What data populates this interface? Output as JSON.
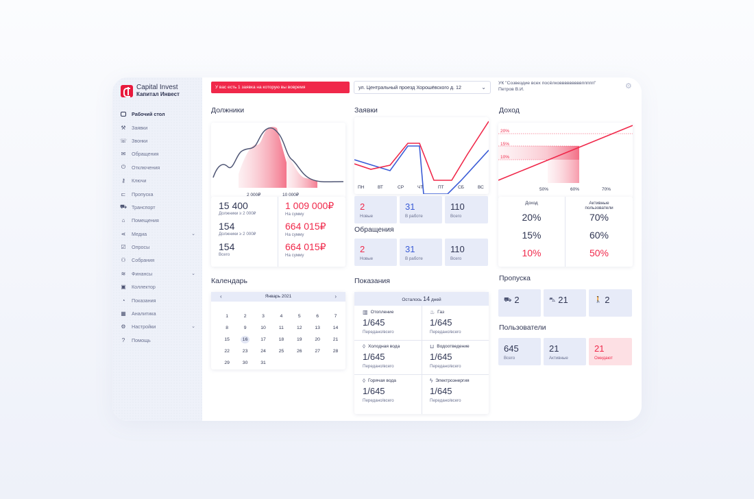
{
  "app": {
    "name": "Capital Invest",
    "name_ru": "Капитал Инвест",
    "accent_color": "#f0284a",
    "blue_color": "#3a5bd6"
  },
  "sidebar": {
    "items": [
      {
        "label": "Рабочий стол",
        "icon": "monitor-icon",
        "active": true
      },
      {
        "label": "Заявки",
        "icon": "wrench-icon"
      },
      {
        "label": "Звонки",
        "icon": "phone-icon"
      },
      {
        "label": "Обращения",
        "icon": "mail-icon"
      },
      {
        "label": "Отключения",
        "icon": "power-icon"
      },
      {
        "label": "Ключи",
        "icon": "key-icon"
      },
      {
        "label": "Пропуска",
        "icon": "pass-icon"
      },
      {
        "label": "Транспорт",
        "icon": "car-icon"
      },
      {
        "label": "Помещения",
        "icon": "home-icon"
      },
      {
        "label": "Медиа",
        "icon": "share-icon",
        "expandable": true
      },
      {
        "label": "Опросы",
        "icon": "checkbox-icon"
      },
      {
        "label": "Собрания",
        "icon": "people-icon"
      },
      {
        "label": "Финансы",
        "icon": "database-icon",
        "expandable": true
      },
      {
        "label": "Коллектор",
        "icon": "briefcase-icon"
      },
      {
        "label": "Показания",
        "icon": "gauge-icon"
      },
      {
        "label": "Аналитика",
        "icon": "chart-icon"
      },
      {
        "label": "Настройки",
        "icon": "gear-icon",
        "expandable": true
      },
      {
        "label": "Помощь",
        "icon": "help-icon"
      }
    ]
  },
  "header": {
    "alert": "У вас есть 1 заявка на которую вы вовремя",
    "address": "ул. Центральный проезд Хорошёвского д. 12",
    "org_name": "УК \"Созвездие всех посёлковввввввввппппп\"",
    "user": "Петров В.И."
  },
  "debtors": {
    "title": "Должники",
    "axis_labels": [
      "2 000₽",
      "10 000₽"
    ],
    "rows": [
      {
        "left_value": "15 400",
        "left_label": "Должники ≥ 2 000₽",
        "right_value": "1 009 000₽",
        "right_label": "На сумму"
      },
      {
        "left_value": "154",
        "left_label": "Должники ≥ 2 000₽",
        "right_value": "664 015₽",
        "right_label": "На сумму"
      },
      {
        "left_value": "154",
        "left_label": "Всего",
        "right_value": "664 015₽",
        "right_label": "На сумму"
      }
    ]
  },
  "requests": {
    "title": "Заявки",
    "days": [
      "ПН",
      "ВТ",
      "СР",
      "ЧТ",
      "ПТ",
      "СБ",
      "ВС"
    ],
    "tiles": [
      {
        "value": "2",
        "label": "Новые",
        "red": true
      },
      {
        "value": "31",
        "label": "В работе"
      },
      {
        "value": "110",
        "label": "Всего"
      }
    ]
  },
  "appeals": {
    "title": "Обращения",
    "tiles": [
      {
        "value": "2",
        "label": "Новые",
        "red": true
      },
      {
        "value": "31",
        "label": "В работе"
      },
      {
        "value": "110",
        "label": "Всего"
      }
    ]
  },
  "income": {
    "title": "Доход",
    "y_labels": [
      "20%",
      "15%",
      "10%"
    ],
    "x_labels": [
      "50%",
      "60%",
      "70%"
    ],
    "col_left_title": "Доход",
    "col_right_title": "Активные пользователи",
    "rows": [
      {
        "left": "20%",
        "right": "70%"
      },
      {
        "left": "15%",
        "right": "60%"
      },
      {
        "left": "10%",
        "right": "50%",
        "red": true
      }
    ]
  },
  "calendar": {
    "title": "Календарь",
    "month": "Январь 2021",
    "selected_day": "16",
    "days": [
      "1",
      "2",
      "3",
      "4",
      "5",
      "6",
      "7",
      "8",
      "9",
      "10",
      "11",
      "12",
      "13",
      "14",
      "15",
      "16",
      "17",
      "18",
      "19",
      "20",
      "21",
      "22",
      "23",
      "24",
      "25",
      "26",
      "27",
      "28",
      "29",
      "30",
      "31"
    ]
  },
  "meters": {
    "title": "Показания",
    "remaining_prefix": "Осталось",
    "remaining_value": "14",
    "remaining_suffix": "дней",
    "cells": [
      {
        "label": "Отопление",
        "icon": "radiator-icon",
        "value": "1/645",
        "sub": "Передано/всего"
      },
      {
        "label": "Газ",
        "icon": "flame-icon",
        "value": "1/645",
        "sub": "Передано/всего"
      },
      {
        "label": "Холодная вода",
        "icon": "drop-icon",
        "value": "1/645",
        "sub": "Передано/всего"
      },
      {
        "label": "Водоотведение",
        "icon": "pipe-icon",
        "value": "1/645",
        "sub": "Передано/всего"
      },
      {
        "label": "Горячая вода",
        "icon": "hot-drop-icon",
        "value": "1/645",
        "sub": "Передано/всего"
      },
      {
        "label": "Электроэнергия",
        "icon": "bolt-icon",
        "value": "1/645",
        "sub": "Передано/всего"
      }
    ]
  },
  "passes": {
    "title": "Пропуска",
    "tiles": [
      {
        "value": "2",
        "icon": "truck-icon"
      },
      {
        "value": "21",
        "icon": "car-icon"
      },
      {
        "value": "2",
        "icon": "pedestrian-icon"
      }
    ]
  },
  "users": {
    "title": "Пользователи",
    "tiles": [
      {
        "value": "645",
        "label": "Всего"
      },
      {
        "value": "21",
        "label": "Активные"
      },
      {
        "value": "21",
        "label": "Ожидают",
        "red": true
      }
    ]
  }
}
